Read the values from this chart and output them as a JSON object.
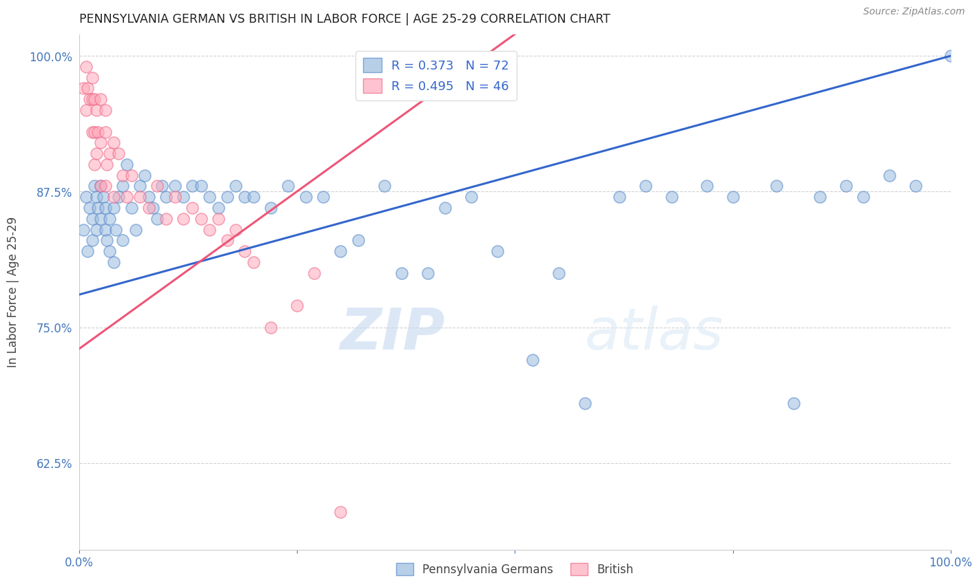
{
  "title": "PENNSYLVANIA GERMAN VS BRITISH IN LABOR FORCE | AGE 25-29 CORRELATION CHART",
  "source_text": "Source: ZipAtlas.com",
  "ylabel": "In Labor Force | Age 25-29",
  "xlim": [
    0.0,
    1.0
  ],
  "ylim": [
    0.545,
    1.02
  ],
  "yticks": [
    0.625,
    0.75,
    0.875,
    1.0
  ],
  "ytick_labels": [
    "62.5%",
    "75.0%",
    "87.5%",
    "100.0%"
  ],
  "xticks": [
    0.0,
    0.25,
    0.5,
    0.75,
    1.0
  ],
  "xtick_labels": [
    "0.0%",
    "",
    "",
    "",
    "100.0%"
  ],
  "tick_color": "#4477BB",
  "blue_color": "#99BBDD",
  "pink_color": "#FFAABB",
  "blue_edge_color": "#5588CC",
  "pink_edge_color": "#EE6688",
  "blue_line_color": "#3366CC",
  "pink_line_color": "#EE5577",
  "r_blue": 0.373,
  "n_blue": 72,
  "r_pink": 0.495,
  "n_pink": 46,
  "watermark_zip": "ZIP",
  "watermark_atlas": "atlas",
  "blue_x": [
    0.005,
    0.008,
    0.01,
    0.012,
    0.015,
    0.015,
    0.018,
    0.02,
    0.02,
    0.022,
    0.025,
    0.025,
    0.028,
    0.03,
    0.03,
    0.032,
    0.035,
    0.035,
    0.04,
    0.04,
    0.042,
    0.045,
    0.05,
    0.05,
    0.055,
    0.06,
    0.065,
    0.07,
    0.075,
    0.08,
    0.085,
    0.09,
    0.095,
    0.1,
    0.11,
    0.12,
    0.13,
    0.14,
    0.15,
    0.16,
    0.17,
    0.18,
    0.19,
    0.2,
    0.22,
    0.24,
    0.26,
    0.28,
    0.3,
    0.32,
    0.35,
    0.37,
    0.4,
    0.42,
    0.45,
    0.48,
    0.52,
    0.55,
    0.58,
    0.62,
    0.65,
    0.68,
    0.72,
    0.75,
    0.8,
    0.82,
    0.85,
    0.88,
    0.9,
    0.93,
    0.96,
    1.0
  ],
  "blue_y": [
    0.84,
    0.87,
    0.82,
    0.86,
    0.85,
    0.83,
    0.88,
    0.87,
    0.84,
    0.86,
    0.88,
    0.85,
    0.87,
    0.84,
    0.86,
    0.83,
    0.82,
    0.85,
    0.86,
    0.81,
    0.84,
    0.87,
    0.88,
    0.83,
    0.9,
    0.86,
    0.84,
    0.88,
    0.89,
    0.87,
    0.86,
    0.85,
    0.88,
    0.87,
    0.88,
    0.87,
    0.88,
    0.88,
    0.87,
    0.86,
    0.87,
    0.88,
    0.87,
    0.87,
    0.86,
    0.88,
    0.87,
    0.87,
    0.82,
    0.83,
    0.88,
    0.8,
    0.8,
    0.86,
    0.87,
    0.82,
    0.72,
    0.8,
    0.68,
    0.87,
    0.88,
    0.87,
    0.88,
    0.87,
    0.88,
    0.68,
    0.87,
    0.88,
    0.87,
    0.89,
    0.88,
    1.0
  ],
  "pink_x": [
    0.005,
    0.008,
    0.008,
    0.01,
    0.012,
    0.015,
    0.015,
    0.015,
    0.018,
    0.018,
    0.018,
    0.02,
    0.02,
    0.022,
    0.025,
    0.025,
    0.025,
    0.03,
    0.03,
    0.03,
    0.032,
    0.035,
    0.04,
    0.04,
    0.045,
    0.05,
    0.055,
    0.06,
    0.07,
    0.08,
    0.09,
    0.1,
    0.11,
    0.12,
    0.13,
    0.14,
    0.15,
    0.16,
    0.17,
    0.18,
    0.19,
    0.2,
    0.22,
    0.25,
    0.27,
    0.3
  ],
  "pink_y": [
    0.97,
    0.99,
    0.95,
    0.97,
    0.96,
    0.98,
    0.96,
    0.93,
    0.96,
    0.93,
    0.9,
    0.95,
    0.91,
    0.93,
    0.96,
    0.92,
    0.88,
    0.95,
    0.93,
    0.88,
    0.9,
    0.91,
    0.92,
    0.87,
    0.91,
    0.89,
    0.87,
    0.89,
    0.87,
    0.86,
    0.88,
    0.85,
    0.87,
    0.85,
    0.86,
    0.85,
    0.84,
    0.85,
    0.83,
    0.84,
    0.82,
    0.81,
    0.75,
    0.77,
    0.8,
    0.58
  ]
}
